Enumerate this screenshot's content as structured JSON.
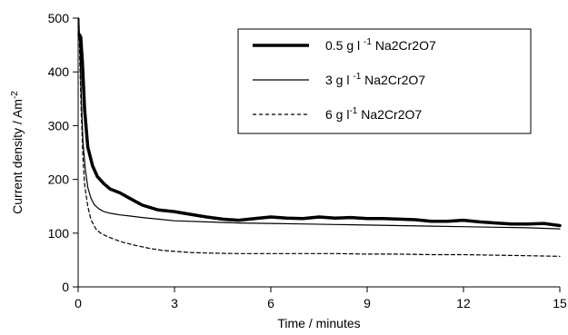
{
  "chart_data": {
    "type": "line",
    "xlabel": "Time / minutes",
    "ylabel": "Current density / Am",
    "ylabel_sup": "-2",
    "xlim": [
      0,
      15
    ],
    "ylim": [
      0,
      500
    ],
    "xticks": [
      "0",
      "3",
      "6",
      "9",
      "12",
      "15"
    ],
    "yticks": [
      "0",
      "100",
      "200",
      "300",
      "400",
      "500"
    ],
    "grid": false,
    "legend_position": "top-right",
    "series": [
      {
        "name": "0.5 g l -1 Na2Cr2O7",
        "legend_parts": [
          "0.5 g l ",
          "-1",
          " Na2Cr2O7"
        ],
        "style": "thick",
        "x": [
          0.03,
          0.08,
          0.13,
          0.2,
          0.3,
          0.45,
          0.6,
          0.8,
          1.0,
          1.3,
          1.6,
          2.0,
          2.5,
          3.0,
          3.5,
          4.0,
          4.5,
          5.0,
          5.5,
          6.0,
          6.5,
          7.0,
          7.5,
          8.0,
          8.5,
          9.0,
          9.5,
          10.0,
          10.5,
          11.0,
          11.5,
          12.0,
          12.5,
          13.0,
          13.5,
          14.0,
          14.5,
          15.0
        ],
        "y": [
          470,
          465,
          420,
          330,
          260,
          225,
          205,
          192,
          182,
          175,
          165,
          152,
          143,
          140,
          135,
          130,
          126,
          124,
          127,
          130,
          128,
          127,
          130,
          128,
          129,
          127,
          127,
          126,
          125,
          122,
          122,
          124,
          121,
          119,
          117,
          117,
          118,
          114
        ]
      },
      {
        "name": "3 g l -1 Na2Cr2O7",
        "legend_parts": [
          "3 g l ",
          "-1",
          " Na2Cr2O7"
        ],
        "style": "thin",
        "x": [
          0.02,
          0.06,
          0.1,
          0.15,
          0.22,
          0.3,
          0.4,
          0.5,
          0.65,
          0.8,
          1.0,
          1.3,
          1.6,
          2.0,
          2.5,
          3.0,
          4.0,
          5.0,
          6.0,
          7.0,
          8.0,
          9.0,
          10.0,
          11.0,
          12.0,
          13.0,
          14.0,
          15.0
        ],
        "y": [
          500,
          440,
          350,
          270,
          220,
          185,
          165,
          153,
          145,
          140,
          137,
          134,
          132,
          129,
          126,
          123,
          121,
          119,
          118,
          117,
          116,
          115,
          114,
          113,
          112,
          111,
          110,
          108
        ]
      },
      {
        "name": "6 g l-1 Na2Cr2O7",
        "legend_parts": [
          "6 g l",
          "-1",
          " Na2Cr2O7"
        ],
        "style": "dashed",
        "x": [
          0.02,
          0.05,
          0.1,
          0.15,
          0.2,
          0.3,
          0.4,
          0.55,
          0.7,
          0.9,
          1.1,
          1.4,
          1.8,
          2.2,
          2.6,
          3.0,
          3.5,
          4.0,
          5.0,
          6.0,
          7.0,
          8.0,
          9.0,
          10.0,
          11.0,
          12.0,
          13.0,
          14.0,
          15.0
        ],
        "y": [
          500,
          420,
          320,
          240,
          190,
          150,
          125,
          108,
          100,
          94,
          89,
          83,
          77,
          72,
          68,
          66,
          64,
          63,
          62,
          62,
          62,
          62,
          61,
          61,
          60,
          60,
          59,
          58,
          57
        ]
      }
    ]
  }
}
